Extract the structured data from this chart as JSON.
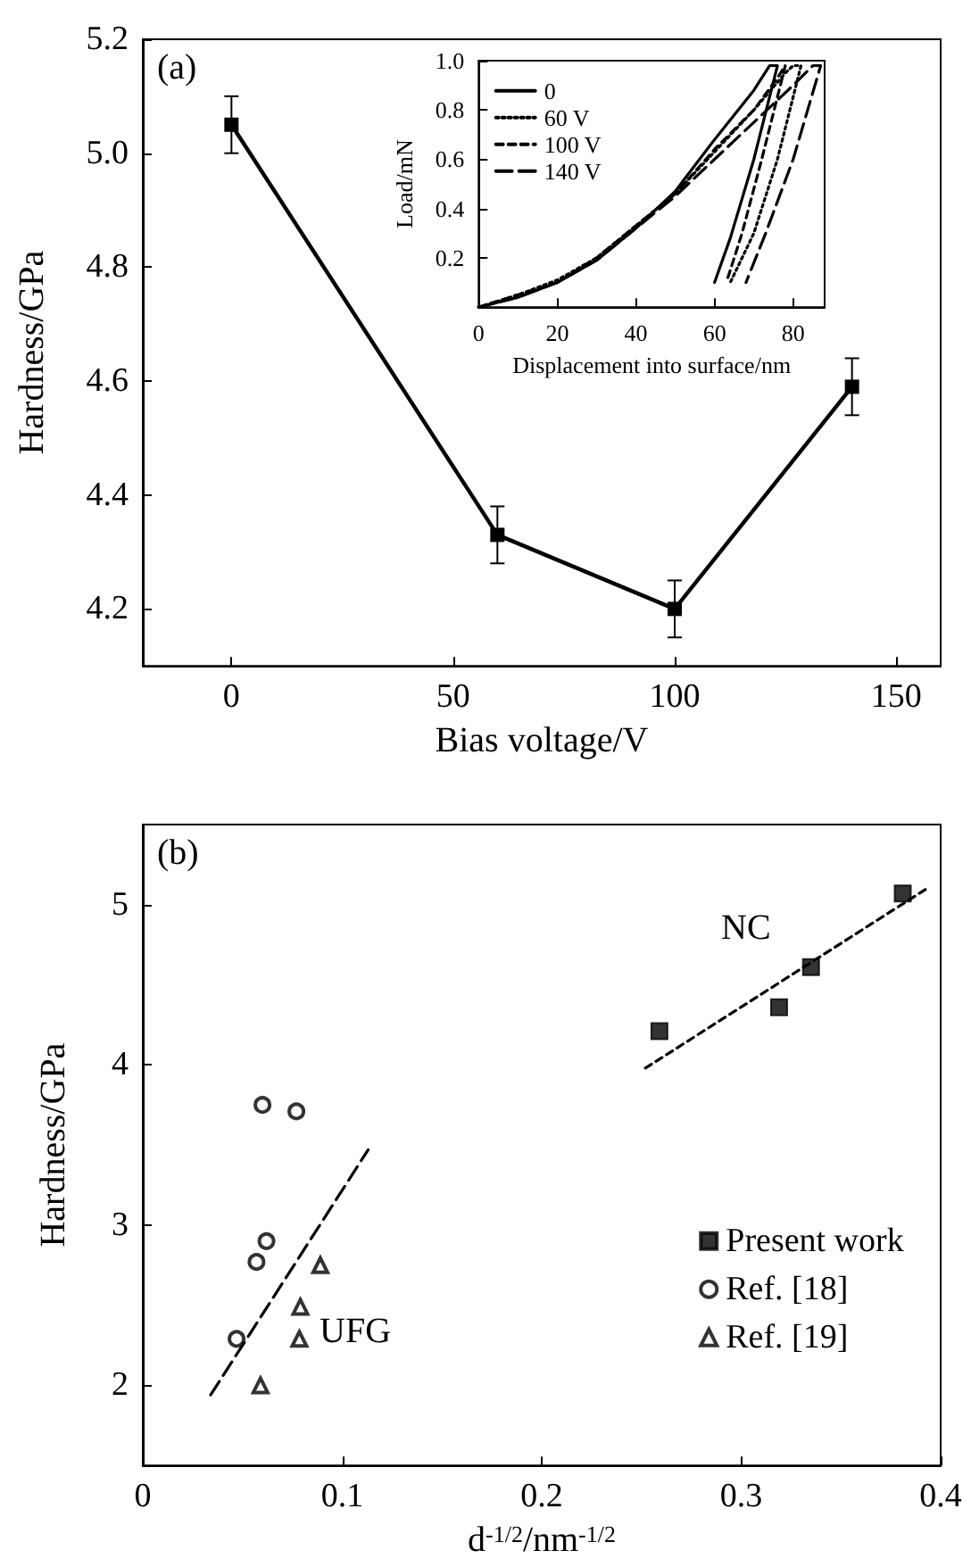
{
  "chart_data": [
    {
      "type": "line",
      "xlabel": "Bias voltage/V",
      "ylabel": "Hardness/GPa",
      "annotations": [
        "(a)"
      ],
      "x": [
        0,
        60,
        100,
        140
      ],
      "series": [
        {
          "color": "#000000",
          "values": [
            5.05,
            4.33,
            4.2,
            4.59
          ],
          "errors": [
            0.05,
            0.05,
            0.05,
            0.05
          ]
        }
      ],
      "xlim": [
        -20,
        160
      ],
      "xticks": [
        0,
        50,
        100,
        150
      ],
      "ylim": [
        4.1,
        5.2
      ],
      "yticks": [
        4.2,
        4.4,
        4.6,
        4.8,
        {
          "value": 5,
          "label": "5.0"
        },
        5.2
      ],
      "marker": "square",
      "line_style": "solid",
      "grid": false,
      "legend": false
    },
    {
      "type": "line",
      "xlabel": "Displacement into surface/nm",
      "ylabel": "Load/mN",
      "series": [
        {
          "name": "0",
          "color": "#000000",
          "line_style": "solid",
          "x": [
            0,
            10,
            20,
            30,
            40,
            50,
            60,
            70,
            74,
            76,
            70,
            64,
            60
          ],
          "values": [
            0,
            0.04,
            0.1,
            0.19,
            0.32,
            0.47,
            0.68,
            0.88,
            0.98,
            0.98,
            0.6,
            0.28,
            0.1
          ]
        },
        {
          "name": "60 V",
          "color": "#000000",
          "line_style": "dotted",
          "x": [
            0,
            10,
            20,
            30,
            40,
            50,
            60,
            70,
            78,
            80,
            82,
            76,
            70,
            64
          ],
          "values": [
            0,
            0.05,
            0.11,
            0.2,
            0.33,
            0.46,
            0.63,
            0.8,
            0.95,
            0.98,
            0.98,
            0.6,
            0.3,
            0.1
          ]
        },
        {
          "name": "100 V",
          "color": "#000000",
          "line_style": "dashed",
          "x": [
            0,
            10,
            20,
            30,
            40,
            50,
            60,
            70,
            76,
            78,
            72,
            67,
            63
          ],
          "values": [
            0,
            0.05,
            0.1,
            0.2,
            0.33,
            0.46,
            0.64,
            0.8,
            0.93,
            0.98,
            0.6,
            0.3,
            0.1
          ]
        },
        {
          "name": "140 V",
          "color": "#000000",
          "line_style": "dashed",
          "x": [
            0,
            10,
            20,
            30,
            40,
            50,
            60,
            70,
            80,
            85,
            87,
            80,
            73,
            68
          ],
          "values": [
            0,
            0.04,
            0.1,
            0.19,
            0.32,
            0.45,
            0.6,
            0.75,
            0.9,
            0.98,
            0.98,
            0.6,
            0.3,
            0.1
          ]
        }
      ],
      "xlim": [
        0,
        88
      ],
      "xticks": [
        0,
        20,
        40,
        60,
        80
      ],
      "ylim": [
        0,
        1
      ],
      "yticks": [
        0.2,
        0.4,
        0.6,
        0.8,
        {
          "value": 1,
          "label": "1.0"
        }
      ],
      "marker": "none",
      "grid": false,
      "legend": "top left"
    },
    {
      "type": "scatter",
      "xlabel": "d$^{-1/2}$/nm$^{-1/2}$",
      "ylabel": "Hardness/GPa",
      "annotations": [
        "(b)",
        "NC",
        "UFG"
      ],
      "series": [
        {
          "name": "Present work",
          "color": "#000000",
          "marker": "square",
          "x": [
            0.259,
            0.319,
            0.335,
            0.381
          ],
          "values": [
            4.21,
            4.36,
            4.61,
            5.07
          ]
        },
        {
          "name": "Ref. [18]",
          "color": "#000000",
          "marker": "circle",
          "x": [
            0.06,
            0.077,
            0.062,
            0.057,
            0.047
          ],
          "values": [
            3.75,
            3.71,
            2.9,
            2.77,
            2.29
          ]
        },
        {
          "name": "Ref. [19]",
          "color": "#000000",
          "marker": "triangle",
          "x": [
            0.089,
            0.079,
            0.0785,
            0.059
          ],
          "values": [
            2.75,
            2.49,
            2.29,
            2.0
          ]
        },
        {
          "type": "line",
          "color": "#000000",
          "line_style": "dashed",
          "marker": "none",
          "x": [
            0.252,
            0.393
          ],
          "values": [
            3.98,
            5.1
          ]
        },
        {
          "type": "line",
          "color": "#000000",
          "line_style": "dashed",
          "marker": "none",
          "x": [
            0.034,
            0.113
          ],
          "values": [
            1.94,
            3.47
          ]
        }
      ],
      "xlim": [
        0,
        0.4
      ],
      "xticks": [
        0,
        0.1,
        0.2,
        0.3,
        0.4
      ],
      "ylim": [
        1.5,
        5.5
      ],
      "yticks": [
        2,
        3,
        4,
        5
      ],
      "grid": false,
      "legend": "right"
    }
  ]
}
